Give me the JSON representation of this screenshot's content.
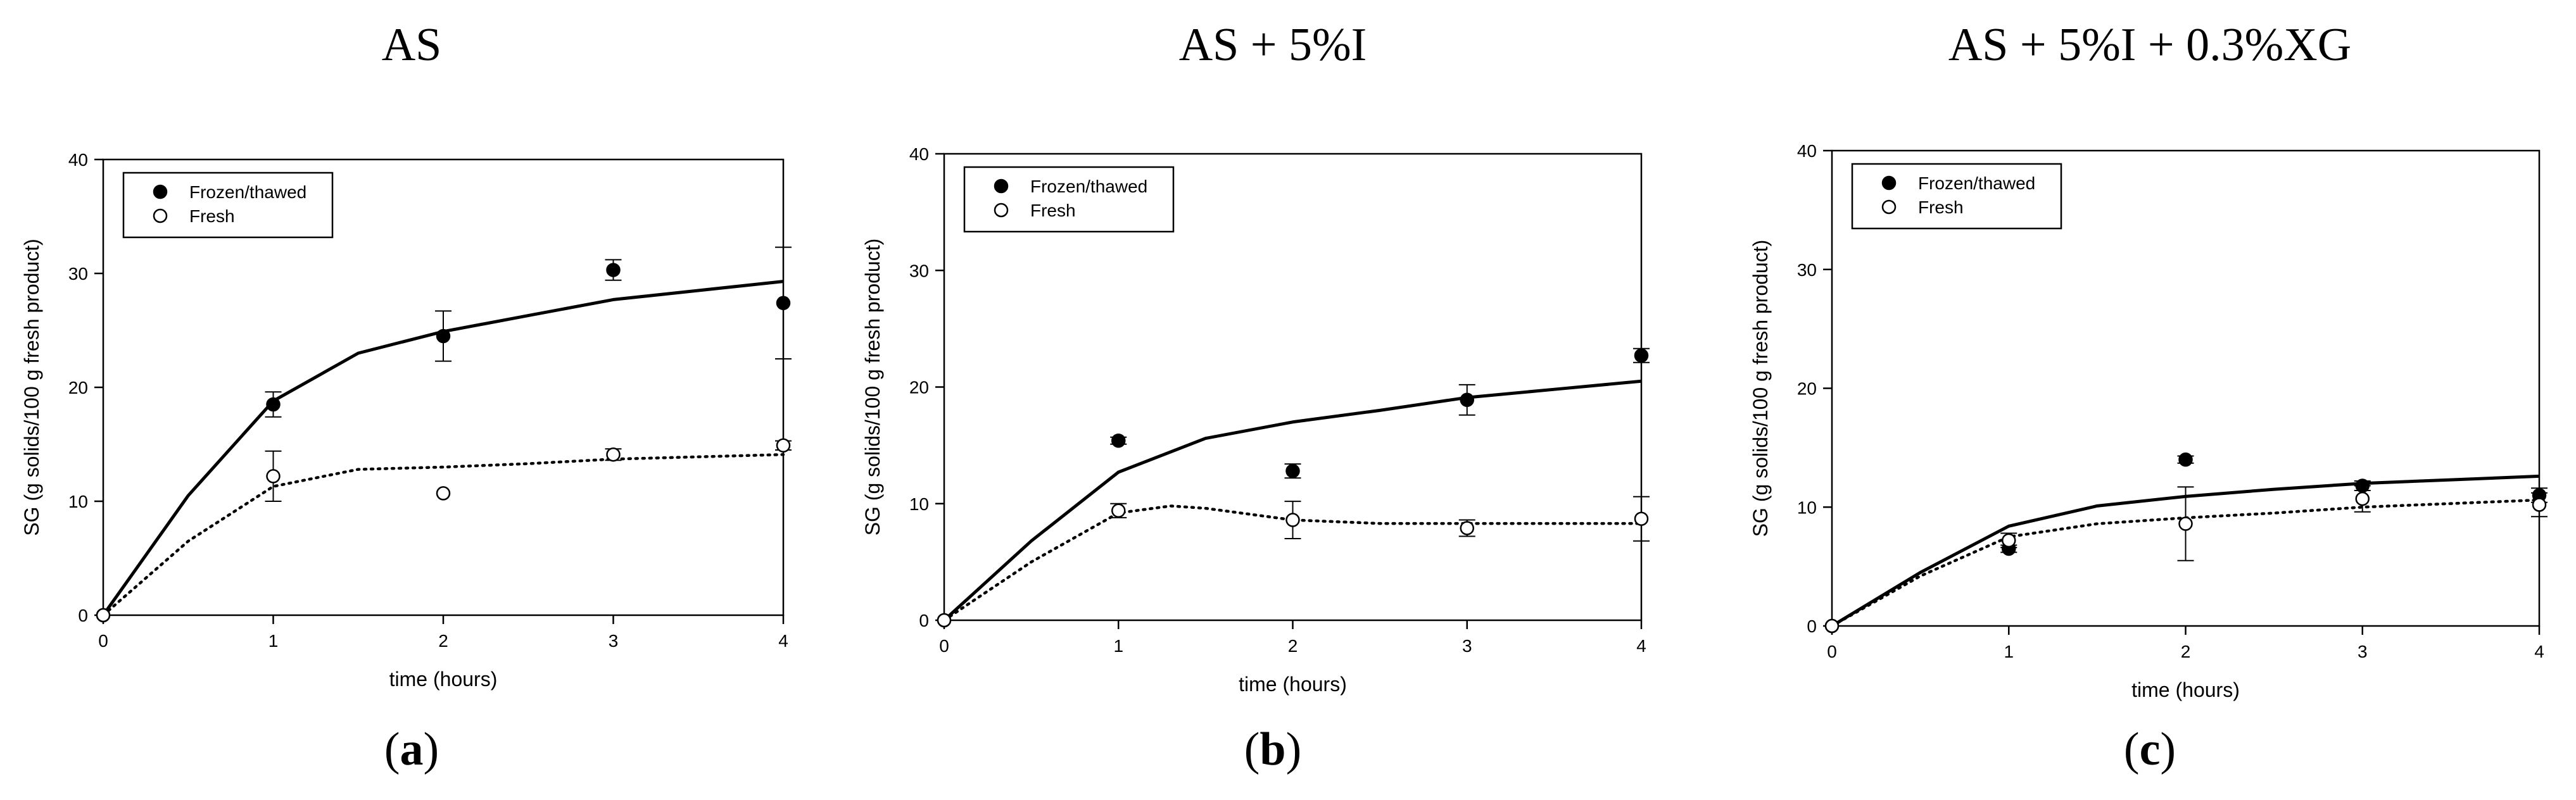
{
  "chart_data": [
    {
      "type": "scatter",
      "title": "AS",
      "panel_label": "a",
      "xlabel": "time (hours)",
      "ylabel": "SG (g solids/100 g fresh product)",
      "xlim": [
        0,
        4
      ],
      "ylim": [
        0,
        40
      ],
      "xticks": [
        "0",
        "1",
        "2",
        "3",
        "4"
      ],
      "yticks": [
        "0",
        "10",
        "20",
        "30",
        "40"
      ],
      "legend_position": "top-left",
      "grid": false,
      "series": [
        {
          "name": "Frozen/thawed",
          "marker": "filled-circle",
          "x": [
            0,
            1,
            2,
            3,
            4
          ],
          "y": [
            0,
            18.5,
            24.5,
            30.3,
            27.4
          ],
          "err": [
            0,
            1.1,
            2.2,
            0.9,
            4.9
          ],
          "fit_x": [
            0,
            0.5,
            1,
            1.5,
            2,
            2.5,
            3,
            3.5,
            4
          ],
          "fit_y": [
            0,
            10.5,
            18.8,
            23.0,
            24.9,
            26.3,
            27.7,
            28.5,
            29.3
          ],
          "fit_style": "solid"
        },
        {
          "name": "Fresh",
          "marker": "open-circle",
          "x": [
            0,
            1,
            2,
            3,
            4
          ],
          "y": [
            0,
            12.2,
            10.7,
            14.1,
            14.9
          ],
          "err": [
            0,
            2.2,
            0,
            0.5,
            0.4
          ],
          "fit_x": [
            0,
            0.5,
            1,
            1.5,
            2,
            2.5,
            3,
            3.5,
            4
          ],
          "fit_y": [
            0,
            6.5,
            11.3,
            12.8,
            13.0,
            13.3,
            13.7,
            13.9,
            14.1
          ],
          "fit_style": "dotted"
        }
      ]
    },
    {
      "type": "scatter",
      "title": "AS + 5%I",
      "panel_label": "b",
      "xlabel": "time (hours)",
      "ylabel": "SG (g solids/100 g fresh product)",
      "xlim": [
        0,
        4
      ],
      "ylim": [
        0,
        40
      ],
      "xticks": [
        "0",
        "1",
        "2",
        "3",
        "4"
      ],
      "yticks": [
        "0",
        "10",
        "20",
        "30",
        "40"
      ],
      "legend_position": "top-left",
      "grid": false,
      "series": [
        {
          "name": "Frozen/thawed",
          "marker": "filled-circle",
          "x": [
            0,
            1,
            2,
            3,
            4
          ],
          "y": [
            0,
            15.4,
            12.8,
            18.9,
            22.7
          ],
          "err": [
            0,
            0.3,
            0.6,
            1.3,
            0.6
          ],
          "fit_x": [
            0,
            0.5,
            1,
            1.5,
            2,
            2.5,
            3,
            3.5,
            4
          ],
          "fit_y": [
            0,
            6.8,
            12.7,
            15.6,
            17.0,
            18.0,
            19.1,
            19.8,
            20.5
          ],
          "fit_style": "solid"
        },
        {
          "name": "Fresh",
          "marker": "open-circle",
          "x": [
            0,
            1,
            2,
            3,
            4
          ],
          "y": [
            0,
            9.4,
            8.6,
            7.9,
            8.7
          ],
          "err": [
            0,
            0.6,
            1.6,
            0.7,
            1.9
          ],
          "fit_x": [
            0,
            0.5,
            1,
            1.3,
            1.5,
            2,
            2.5,
            3,
            3.5,
            4
          ],
          "fit_y": [
            0,
            5.0,
            9.2,
            9.8,
            9.6,
            8.6,
            8.3,
            8.3,
            8.3,
            8.3
          ],
          "fit_style": "dotted"
        }
      ]
    },
    {
      "type": "scatter",
      "title": "AS + 5%I + 0.3%XG",
      "panel_label": "c",
      "xlabel": "time (hours)",
      "ylabel": "SG (g solids/100 g fresh product)",
      "xlim": [
        0,
        4
      ],
      "ylim": [
        0,
        40
      ],
      "xticks": [
        "0",
        "1",
        "2",
        "3",
        "4"
      ],
      "yticks": [
        "0",
        "10",
        "20",
        "30",
        "40"
      ],
      "legend_position": "top-left",
      "grid": false,
      "series": [
        {
          "name": "Frozen/thawed",
          "marker": "filled-circle",
          "x": [
            0,
            1,
            2,
            3,
            4
          ],
          "y": [
            0,
            6.5,
            14.0,
            11.8,
            11.0
          ],
          "err": [
            0,
            0.3,
            0.3,
            0.4,
            0.6
          ],
          "fit_x": [
            0,
            0.5,
            1,
            1.5,
            2,
            2.5,
            3,
            3.5,
            4
          ],
          "fit_y": [
            0,
            4.5,
            8.4,
            10.1,
            10.9,
            11.5,
            12.0,
            12.3,
            12.6
          ],
          "fit_style": "solid"
        },
        {
          "name": "Fresh",
          "marker": "open-circle",
          "x": [
            0,
            1,
            2,
            3,
            4
          ],
          "y": [
            0,
            7.2,
            8.6,
            10.7,
            10.2
          ],
          "err": [
            0,
            0.6,
            3.1,
            1.1,
            1.0
          ],
          "fit_x": [
            0,
            0.5,
            1,
            1.5,
            2,
            2.5,
            3,
            3.5,
            4
          ],
          "fit_y": [
            0,
            4.2,
            7.5,
            8.6,
            9.1,
            9.5,
            10.0,
            10.3,
            10.6
          ],
          "fit_style": "dotted"
        }
      ]
    }
  ]
}
